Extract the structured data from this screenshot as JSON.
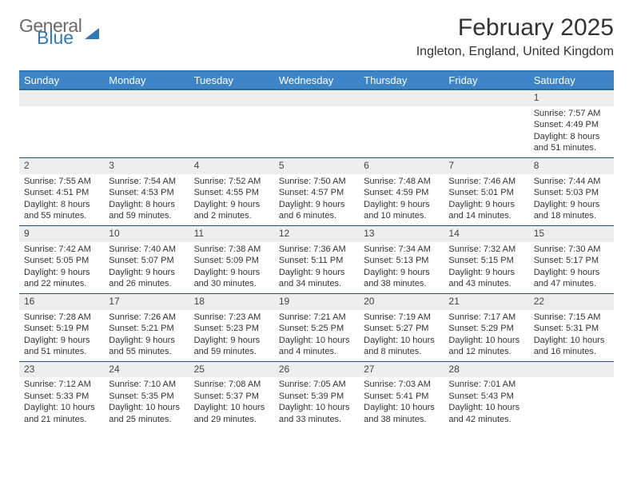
{
  "brand": {
    "word1": "General",
    "word2": "Blue"
  },
  "title": {
    "month": "February 2025",
    "location": "Ingleton, England, United Kingdom"
  },
  "colors": {
    "header_bg": "#3d85c6",
    "header_border_top": "#2f79b9",
    "row_divider": "#1f4e79",
    "daynum_bg": "#eeeeee",
    "text": "#333333",
    "logo_gray": "#6a6a6a",
    "logo_blue": "#2f79b9"
  },
  "day_headers": [
    "Sunday",
    "Monday",
    "Tuesday",
    "Wednesday",
    "Thursday",
    "Friday",
    "Saturday"
  ],
  "weeks": [
    [
      {
        "n": "",
        "lines": []
      },
      {
        "n": "",
        "lines": []
      },
      {
        "n": "",
        "lines": []
      },
      {
        "n": "",
        "lines": []
      },
      {
        "n": "",
        "lines": []
      },
      {
        "n": "",
        "lines": []
      },
      {
        "n": "1",
        "lines": [
          "Sunrise: 7:57 AM",
          "Sunset: 4:49 PM",
          "Daylight: 8 hours and 51 minutes."
        ]
      }
    ],
    [
      {
        "n": "2",
        "lines": [
          "Sunrise: 7:55 AM",
          "Sunset: 4:51 PM",
          "Daylight: 8 hours and 55 minutes."
        ]
      },
      {
        "n": "3",
        "lines": [
          "Sunrise: 7:54 AM",
          "Sunset: 4:53 PM",
          "Daylight: 8 hours and 59 minutes."
        ]
      },
      {
        "n": "4",
        "lines": [
          "Sunrise: 7:52 AM",
          "Sunset: 4:55 PM",
          "Daylight: 9 hours and 2 minutes."
        ]
      },
      {
        "n": "5",
        "lines": [
          "Sunrise: 7:50 AM",
          "Sunset: 4:57 PM",
          "Daylight: 9 hours and 6 minutes."
        ]
      },
      {
        "n": "6",
        "lines": [
          "Sunrise: 7:48 AM",
          "Sunset: 4:59 PM",
          "Daylight: 9 hours and 10 minutes."
        ]
      },
      {
        "n": "7",
        "lines": [
          "Sunrise: 7:46 AM",
          "Sunset: 5:01 PM",
          "Daylight: 9 hours and 14 minutes."
        ]
      },
      {
        "n": "8",
        "lines": [
          "Sunrise: 7:44 AM",
          "Sunset: 5:03 PM",
          "Daylight: 9 hours and 18 minutes."
        ]
      }
    ],
    [
      {
        "n": "9",
        "lines": [
          "Sunrise: 7:42 AM",
          "Sunset: 5:05 PM",
          "Daylight: 9 hours and 22 minutes."
        ]
      },
      {
        "n": "10",
        "lines": [
          "Sunrise: 7:40 AM",
          "Sunset: 5:07 PM",
          "Daylight: 9 hours and 26 minutes."
        ]
      },
      {
        "n": "11",
        "lines": [
          "Sunrise: 7:38 AM",
          "Sunset: 5:09 PM",
          "Daylight: 9 hours and 30 minutes."
        ]
      },
      {
        "n": "12",
        "lines": [
          "Sunrise: 7:36 AM",
          "Sunset: 5:11 PM",
          "Daylight: 9 hours and 34 minutes."
        ]
      },
      {
        "n": "13",
        "lines": [
          "Sunrise: 7:34 AM",
          "Sunset: 5:13 PM",
          "Daylight: 9 hours and 38 minutes."
        ]
      },
      {
        "n": "14",
        "lines": [
          "Sunrise: 7:32 AM",
          "Sunset: 5:15 PM",
          "Daylight: 9 hours and 43 minutes."
        ]
      },
      {
        "n": "15",
        "lines": [
          "Sunrise: 7:30 AM",
          "Sunset: 5:17 PM",
          "Daylight: 9 hours and 47 minutes."
        ]
      }
    ],
    [
      {
        "n": "16",
        "lines": [
          "Sunrise: 7:28 AM",
          "Sunset: 5:19 PM",
          "Daylight: 9 hours and 51 minutes."
        ]
      },
      {
        "n": "17",
        "lines": [
          "Sunrise: 7:26 AM",
          "Sunset: 5:21 PM",
          "Daylight: 9 hours and 55 minutes."
        ]
      },
      {
        "n": "18",
        "lines": [
          "Sunrise: 7:23 AM",
          "Sunset: 5:23 PM",
          "Daylight: 9 hours and 59 minutes."
        ]
      },
      {
        "n": "19",
        "lines": [
          "Sunrise: 7:21 AM",
          "Sunset: 5:25 PM",
          "Daylight: 10 hours and 4 minutes."
        ]
      },
      {
        "n": "20",
        "lines": [
          "Sunrise: 7:19 AM",
          "Sunset: 5:27 PM",
          "Daylight: 10 hours and 8 minutes."
        ]
      },
      {
        "n": "21",
        "lines": [
          "Sunrise: 7:17 AM",
          "Sunset: 5:29 PM",
          "Daylight: 10 hours and 12 minutes."
        ]
      },
      {
        "n": "22",
        "lines": [
          "Sunrise: 7:15 AM",
          "Sunset: 5:31 PM",
          "Daylight: 10 hours and 16 minutes."
        ]
      }
    ],
    [
      {
        "n": "23",
        "lines": [
          "Sunrise: 7:12 AM",
          "Sunset: 5:33 PM",
          "Daylight: 10 hours and 21 minutes."
        ]
      },
      {
        "n": "24",
        "lines": [
          "Sunrise: 7:10 AM",
          "Sunset: 5:35 PM",
          "Daylight: 10 hours and 25 minutes."
        ]
      },
      {
        "n": "25",
        "lines": [
          "Sunrise: 7:08 AM",
          "Sunset: 5:37 PM",
          "Daylight: 10 hours and 29 minutes."
        ]
      },
      {
        "n": "26",
        "lines": [
          "Sunrise: 7:05 AM",
          "Sunset: 5:39 PM",
          "Daylight: 10 hours and 33 minutes."
        ]
      },
      {
        "n": "27",
        "lines": [
          "Sunrise: 7:03 AM",
          "Sunset: 5:41 PM",
          "Daylight: 10 hours and 38 minutes."
        ]
      },
      {
        "n": "28",
        "lines": [
          "Sunrise: 7:01 AM",
          "Sunset: 5:43 PM",
          "Daylight: 10 hours and 42 minutes."
        ]
      },
      {
        "n": "",
        "lines": []
      }
    ]
  ]
}
